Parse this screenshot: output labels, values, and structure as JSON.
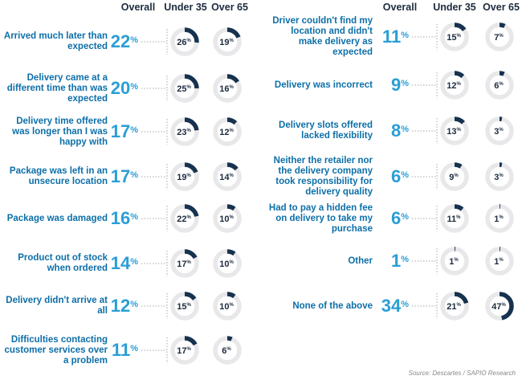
{
  "headers": {
    "overall": "Overall",
    "under35": "Under 35",
    "over65": "Over 65"
  },
  "colors": {
    "accent": "#2a9ed6",
    "label": "#0d6fa8",
    "ring_bg": "#e8e8ea",
    "ring_fill": "#16324f",
    "dots": "#aaaaaa"
  },
  "source": "Source: Descartes / SAPIO Research",
  "chart_data": {
    "type": "table",
    "columns": [
      "Overall",
      "Under 35",
      "Over 65"
    ],
    "unit": "%",
    "rows": [
      {
        "label": "Arrived much later than expected",
        "overall": 22,
        "under35": 26,
        "over65": 19
      },
      {
        "label": "Delivery came at a different time than was expected",
        "overall": 20,
        "under35": 25,
        "over65": 16
      },
      {
        "label": "Delivery time offered was longer than I was happy with",
        "overall": 17,
        "under35": 23,
        "over65": 12
      },
      {
        "label": "Package was left in an unsecure location",
        "overall": 17,
        "under35": 19,
        "over65": 14
      },
      {
        "label": "Package was damaged",
        "overall": 16,
        "under35": 22,
        "over65": 10
      },
      {
        "label": "Product out of stock when ordered",
        "overall": 14,
        "under35": 17,
        "over65": 10
      },
      {
        "label": "Delivery didn't arrive at all",
        "overall": 12,
        "under35": 15,
        "over65": 10
      },
      {
        "label": "Difficulties contacting customer services over a problem",
        "overall": 11,
        "under35": 17,
        "over65": 6
      },
      {
        "label": "Driver couldn't find my location and didn't make delivery as expected",
        "overall": 11,
        "under35": 15,
        "over65": 7
      },
      {
        "label": "Delivery was incorrect",
        "overall": 9,
        "under35": 12,
        "over65": 6
      },
      {
        "label": "Delivery slots offered lacked flexibility",
        "overall": 8,
        "under35": 13,
        "over65": 3
      },
      {
        "label": "Neither the retailer nor the delivery company took responsibility for delivery quality",
        "overall": 6,
        "under35": 9,
        "over65": 3
      },
      {
        "label": "Had to pay a hidden fee on delivery to take my purchase",
        "overall": 6,
        "under35": 11,
        "over65": 1
      },
      {
        "label": "Other",
        "overall": 1,
        "under35": 1,
        "over65": 1
      },
      {
        "label": "None of the above",
        "overall": 34,
        "under35": 21,
        "over65": 47
      }
    ]
  }
}
